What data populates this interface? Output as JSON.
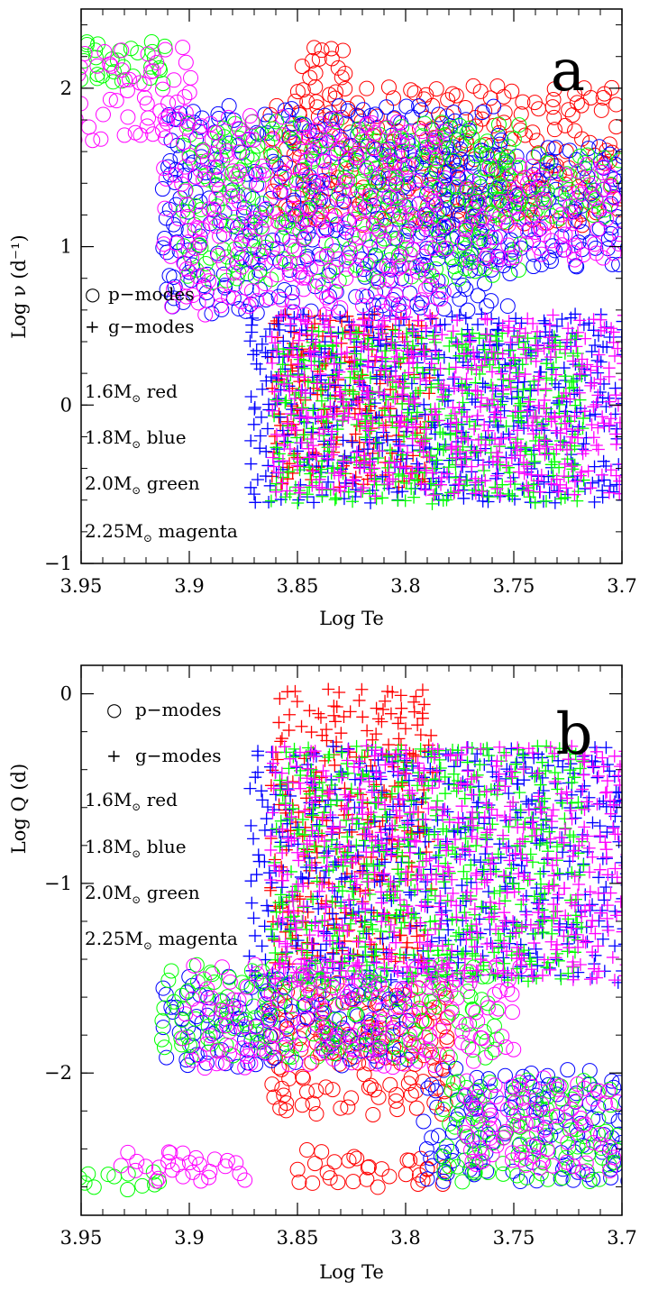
{
  "figure": {
    "colors": {
      "red": "#ff0000",
      "blue": "#0000ff",
      "green": "#00ff00",
      "magenta": "#ff00ff",
      "axis": "#000000"
    }
  },
  "chart_data": [
    {
      "type": "scatter",
      "panel_label": "a",
      "xlabel": "Log Te",
      "ylabel": "Log ν (d⁻¹)",
      "xlim": [
        3.95,
        3.7
      ],
      "ylim": [
        -1,
        2.5
      ],
      "xticks": [
        3.95,
        3.9,
        3.85,
        3.8,
        3.75,
        3.7
      ],
      "xtick_labels": [
        "3.95",
        "3.9",
        "3.85",
        "3.8",
        "3.75",
        "3.7"
      ],
      "yticks": [
        -1,
        0,
        1,
        2
      ],
      "ytick_labels": [
        "−1",
        "0",
        "1",
        "2"
      ],
      "legend_markers": [
        {
          "symbol": "○",
          "label": "p−modes"
        },
        {
          "symbol": "+",
          "label": "g−modes"
        }
      ],
      "legend_masses": [
        {
          "mass": "1.6",
          "unit": "M",
          "sub": "⊙",
          "color_name": "red"
        },
        {
          "mass": "1.8",
          "unit": "M",
          "sub": "⊙",
          "color_name": "blue"
        },
        {
          "mass": "2.0",
          "unit": "M",
          "sub": "⊙",
          "color_name": "green"
        },
        {
          "mass": "2.25",
          "unit": "M",
          "sub": "⊙",
          "color_name": "magenta"
        }
      ],
      "series": [
        {
          "name": "1.6 Msun",
          "color": "#ff0000",
          "modes": [
            {
              "mode": "p",
              "x": [
                3.86,
                3.7
              ],
              "y": [
                1.15,
                2.0
              ],
              "step": [
                0.006,
                0.06
              ]
            },
            {
              "mode": "p",
              "x": [
                3.845,
                3.825
              ],
              "y": [
                2.0,
                2.35
              ],
              "step": [
                0.006,
                0.06
              ]
            },
            {
              "mode": "g",
              "x": [
                3.86,
                3.79
              ],
              "y": [
                -0.5,
                0.55
              ],
              "step": [
                0.005,
                0.05
              ]
            }
          ]
        },
        {
          "name": "1.8 Msun",
          "color": "#0000ff",
          "modes": [
            {
              "mode": "p",
              "x": [
                3.91,
                3.75
              ],
              "y": [
                0.6,
                1.9
              ],
              "step": [
                0.006,
                0.06
              ]
            },
            {
              "mode": "p",
              "x": [
                3.79,
                3.7
              ],
              "y": [
                0.9,
                1.65
              ],
              "step": [
                0.006,
                0.06
              ]
            },
            {
              "mode": "g",
              "x": [
                3.87,
                3.7
              ],
              "y": [
                -0.6,
                0.55
              ],
              "step": [
                0.005,
                0.05
              ]
            }
          ]
        },
        {
          "name": "2.0 Msun",
          "color": "#00ff00",
          "modes": [
            {
              "mode": "p",
              "x": [
                3.95,
                3.91
              ],
              "y": [
                2.05,
                2.3
              ],
              "step": [
                0.006,
                0.05
              ]
            },
            {
              "mode": "p",
              "x": [
                3.9,
                3.75
              ],
              "y": [
                0.8,
                1.8
              ],
              "step": [
                0.006,
                0.06
              ]
            },
            {
              "mode": "p",
              "x": [
                3.77,
                3.7
              ],
              "y": [
                1.2,
                1.6
              ],
              "step": [
                0.006,
                0.06
              ]
            },
            {
              "mode": "g",
              "x": [
                3.86,
                3.72
              ],
              "y": [
                -0.6,
                0.45
              ],
              "step": [
                0.005,
                0.05
              ]
            }
          ]
        },
        {
          "name": "2.25 Msun",
          "color": "#ff00ff",
          "modes": [
            {
              "mode": "p",
              "x": [
                3.95,
                3.9
              ],
              "y": [
                1.7,
                2.25
              ],
              "step": [
                0.006,
                0.06
              ]
            },
            {
              "mode": "p",
              "x": [
                3.91,
                3.78
              ],
              "y": [
                0.6,
                1.8
              ],
              "step": [
                0.006,
                0.06
              ]
            },
            {
              "mode": "p",
              "x": [
                3.77,
                3.7
              ],
              "y": [
                0.9,
                1.5
              ],
              "step": [
                0.006,
                0.06
              ]
            },
            {
              "mode": "g",
              "x": [
                3.86,
                3.7
              ],
              "y": [
                -0.55,
                0.55
              ],
              "step": [
                0.005,
                0.05
              ]
            }
          ]
        }
      ]
    },
    {
      "type": "scatter",
      "panel_label": "b",
      "xlabel": "Log Te",
      "ylabel": "Log Q (d)",
      "xlim": [
        3.95,
        3.7
      ],
      "ylim": [
        -2.75,
        0.15
      ],
      "xticks": [
        3.95,
        3.9,
        3.85,
        3.8,
        3.75,
        3.7
      ],
      "xtick_labels": [
        "3.95",
        "3.9",
        "3.85",
        "3.8",
        "3.75",
        "3.7"
      ],
      "yticks": [
        -2,
        -1,
        0
      ],
      "ytick_labels": [
        "−2",
        "−1",
        "0"
      ],
      "legend_markers": [
        {
          "symbol": "○",
          "label": "p−modes"
        },
        {
          "symbol": "+",
          "label": "g−modes"
        }
      ],
      "legend_masses": [
        {
          "mass": "1.6",
          "unit": "M",
          "sub": "⊙",
          "color_name": "red"
        },
        {
          "mass": "1.8",
          "unit": "M",
          "sub": "⊙",
          "color_name": "blue"
        },
        {
          "mass": "2.0",
          "unit": "M",
          "sub": "⊙",
          "color_name": "green"
        },
        {
          "mass": "2.25",
          "unit": "M",
          "sub": "⊙",
          "color_name": "magenta"
        }
      ],
      "series": [
        {
          "name": "1.6 Msun",
          "color": "#ff0000",
          "modes": [
            {
              "mode": "p",
              "x": [
                3.86,
                3.78
              ],
              "y": [
                -2.2,
                -1.55
              ],
              "step": [
                0.006,
                0.05
              ]
            },
            {
              "mode": "p",
              "x": [
                3.85,
                3.78
              ],
              "y": [
                -2.58,
                -2.4
              ],
              "step": [
                0.006,
                0.05
              ]
            },
            {
              "mode": "g",
              "x": [
                3.86,
                3.79
              ],
              "y": [
                -1.4,
                0.0
              ],
              "step": [
                0.005,
                0.05
              ]
            }
          ]
        },
        {
          "name": "1.8 Msun",
          "color": "#0000ff",
          "modes": [
            {
              "mode": "p",
              "x": [
                3.91,
                3.8
              ],
              "y": [
                -1.95,
                -1.5
              ],
              "step": [
                0.006,
                0.05
              ]
            },
            {
              "mode": "p",
              "x": [
                3.79,
                3.7
              ],
              "y": [
                -2.55,
                -2.0
              ],
              "step": [
                0.006,
                0.05
              ]
            },
            {
              "mode": "g",
              "x": [
                3.87,
                3.7
              ],
              "y": [
                -1.5,
                -0.3
              ],
              "step": [
                0.005,
                0.05
              ]
            }
          ]
        },
        {
          "name": "2.0 Msun",
          "color": "#00ff00",
          "modes": [
            {
              "mode": "p",
              "x": [
                3.95,
                3.91
              ],
              "y": [
                -2.6,
                -2.5
              ],
              "step": [
                0.006,
                0.04
              ]
            },
            {
              "mode": "p",
              "x": [
                3.91,
                3.76
              ],
              "y": [
                -1.9,
                -1.45
              ],
              "step": [
                0.006,
                0.05
              ]
            },
            {
              "mode": "p",
              "x": [
                3.78,
                3.7
              ],
              "y": [
                -2.55,
                -2.05
              ],
              "step": [
                0.006,
                0.05
              ]
            },
            {
              "mode": "g",
              "x": [
                3.86,
                3.72
              ],
              "y": [
                -1.5,
                -0.3
              ],
              "step": [
                0.005,
                0.05
              ]
            }
          ]
        },
        {
          "name": "2.25 Msun",
          "color": "#ff00ff",
          "modes": [
            {
              "mode": "p",
              "x": [
                3.93,
                3.87
              ],
              "y": [
                -2.55,
                -2.4
              ],
              "step": [
                0.006,
                0.04
              ]
            },
            {
              "mode": "p",
              "x": [
                3.9,
                3.75
              ],
              "y": [
                -1.95,
                -1.45
              ],
              "step": [
                0.006,
                0.05
              ]
            },
            {
              "mode": "p",
              "x": [
                3.77,
                3.7
              ],
              "y": [
                -2.5,
                -2.05
              ],
              "step": [
                0.006,
                0.05
              ]
            },
            {
              "mode": "g",
              "x": [
                3.86,
                3.7
              ],
              "y": [
                -1.5,
                -0.3
              ],
              "step": [
                0.005,
                0.05
              ]
            }
          ]
        }
      ]
    }
  ]
}
